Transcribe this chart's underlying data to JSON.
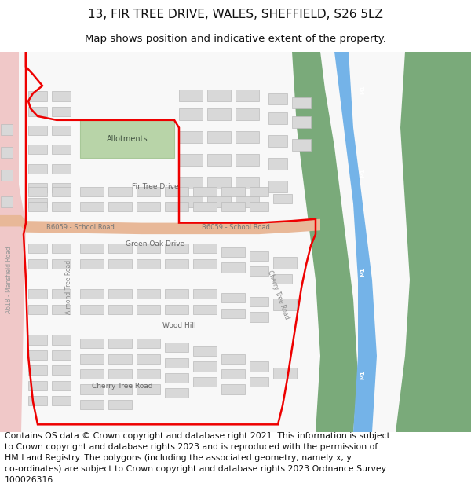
{
  "title": "13, FIR TREE DRIVE, WALES, SHEFFIELD, S26 5LZ",
  "subtitle": "Map shows position and indicative extent of the property.",
  "footer": "Contains OS data © Crown copyright and database right 2021. This information is subject\nto Crown copyright and database rights 2023 and is reproduced with the permission of\nHM Land Registry. The polygons (including the associated geometry, namely x, y\nco-ordinates) are subject to Crown copyright and database rights 2023 Ordnance Survey\n100026316.",
  "bg_color": "#ffffff",
  "map_bg": "#f2f2f2",
  "road_color_school": "#e8b898",
  "road_color_a618": "#f0c8c8",
  "road_color_motorway": "#74b3e8",
  "allotment_color": "#b8d4a8",
  "building_color": "#d8d8d8",
  "building_edge": "#bbbbbb",
  "red_outline": "#ee0000",
  "motorway_green": "#7aaa7a",
  "title_fontsize": 11,
  "subtitle_fontsize": 9.5,
  "footer_fontsize": 7.8,
  "label_color": "#666666",
  "road_label_color": "#777777"
}
